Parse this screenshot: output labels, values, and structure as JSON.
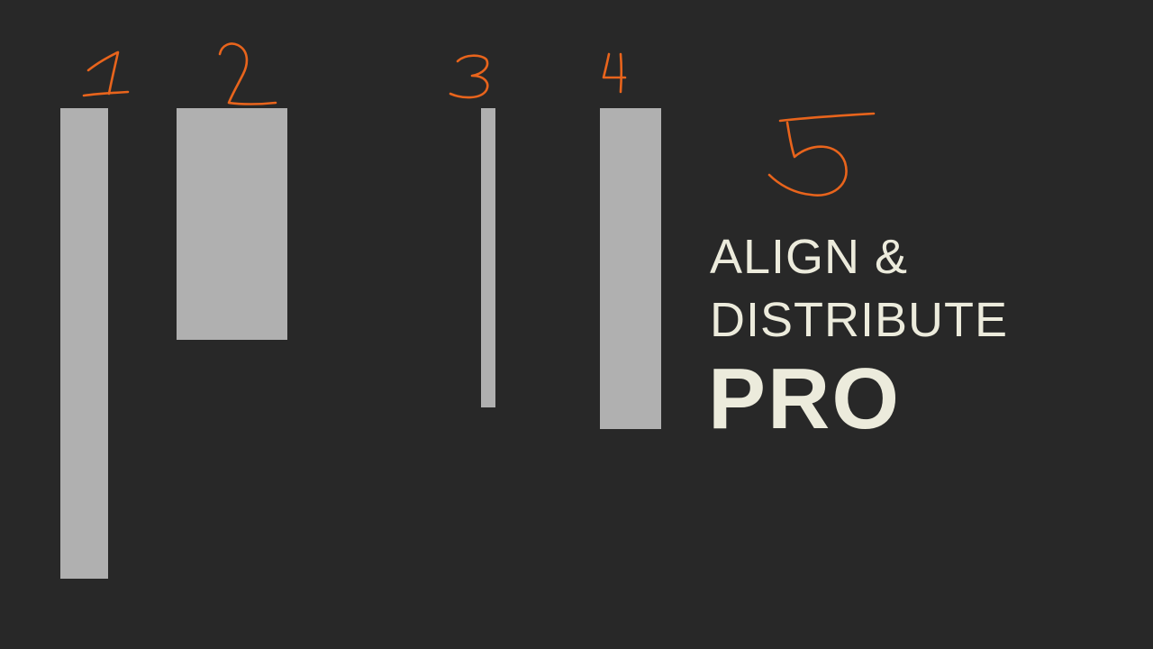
{
  "title": {
    "line1": "ALIGN &",
    "line2": "DISTRIBUTE",
    "emphasis": "PRO"
  },
  "annotations": [
    "1",
    "2",
    "3",
    "4",
    "5"
  ],
  "colors": {
    "background": "#282828",
    "shape": "#b0b0b0",
    "annotation": "#e8641c",
    "text": "#ecebdc"
  }
}
